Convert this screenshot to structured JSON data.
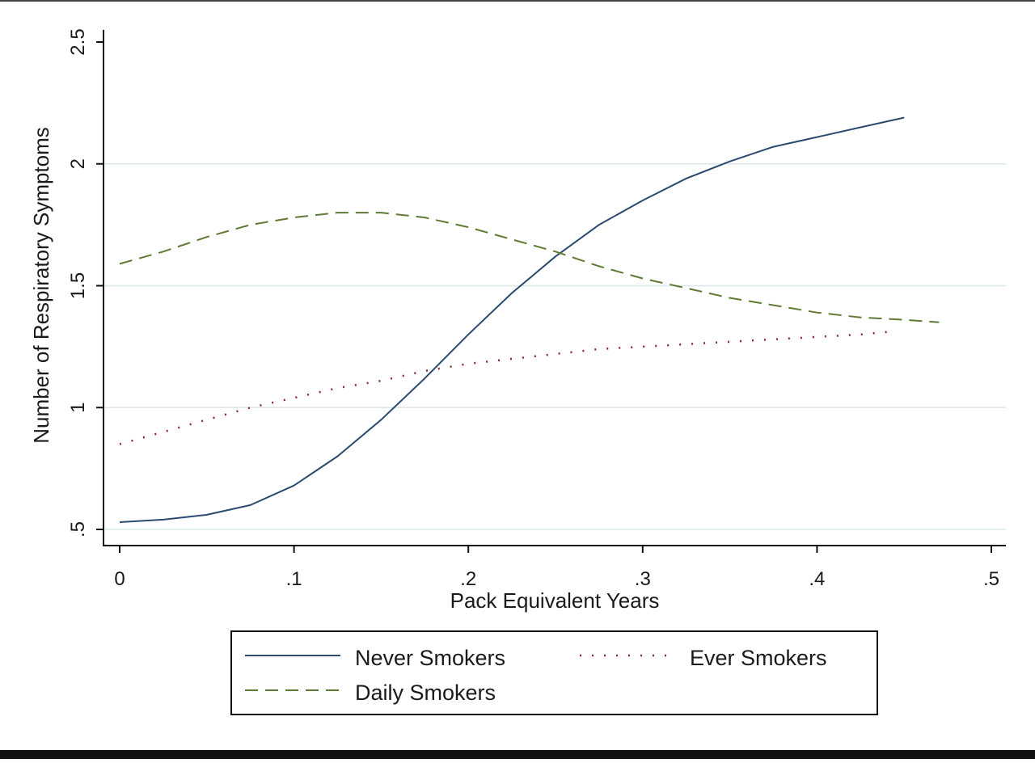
{
  "chart_data": {
    "type": "line",
    "title": "",
    "xlabel": "Pack Equivalent Years",
    "ylabel": "Number of Respiratory Symptoms",
    "xlim": [
      0,
      0.5
    ],
    "ylim": [
      0.5,
      2.5
    ],
    "x_ticks": [
      0,
      0.1,
      0.2,
      0.3,
      0.4,
      0.5
    ],
    "x_tick_labels": [
      "0",
      ".1",
      ".2",
      ".3",
      ".4",
      ".5"
    ],
    "y_ticks": [
      0.5,
      1,
      1.5,
      2,
      2.5
    ],
    "y_tick_labels": [
      ".5",
      "1",
      "1.5",
      "2",
      "2.5"
    ],
    "grid": "horizontal",
    "legend_position": "bottom",
    "series": [
      {
        "name": "Never Smokers",
        "style": "solid",
        "color": "#2b4a6f",
        "x": [
          0,
          0.025,
          0.05,
          0.075,
          0.1,
          0.125,
          0.15,
          0.175,
          0.2,
          0.225,
          0.25,
          0.275,
          0.3,
          0.325,
          0.35,
          0.375,
          0.4,
          0.425,
          0.45
        ],
        "y": [
          0.53,
          0.54,
          0.56,
          0.6,
          0.68,
          0.8,
          0.95,
          1.12,
          1.3,
          1.47,
          1.62,
          1.75,
          1.85,
          1.94,
          2.01,
          2.07,
          2.11,
          2.15,
          2.19
        ]
      },
      {
        "name": "Ever Smokers",
        "style": "dotted",
        "color": "#8b2a2a",
        "x": [
          0,
          0.025,
          0.05,
          0.075,
          0.1,
          0.125,
          0.15,
          0.175,
          0.2,
          0.225,
          0.25,
          0.275,
          0.3,
          0.325,
          0.35,
          0.375,
          0.4,
          0.425,
          0.44
        ],
        "y": [
          0.85,
          0.9,
          0.95,
          1.0,
          1.04,
          1.08,
          1.11,
          1.15,
          1.18,
          1.2,
          1.22,
          1.24,
          1.25,
          1.26,
          1.27,
          1.28,
          1.29,
          1.3,
          1.31
        ]
      },
      {
        "name": "Daily Smokers",
        "style": "dashed",
        "color": "#5e7a33",
        "x": [
          0,
          0.025,
          0.05,
          0.075,
          0.1,
          0.125,
          0.15,
          0.175,
          0.2,
          0.225,
          0.25,
          0.275,
          0.3,
          0.325,
          0.35,
          0.375,
          0.4,
          0.425,
          0.45,
          0.47
        ],
        "y": [
          1.59,
          1.64,
          1.7,
          1.75,
          1.78,
          1.8,
          1.8,
          1.78,
          1.74,
          1.69,
          1.64,
          1.58,
          1.53,
          1.49,
          1.45,
          1.42,
          1.39,
          1.37,
          1.36,
          1.35
        ]
      }
    ]
  }
}
